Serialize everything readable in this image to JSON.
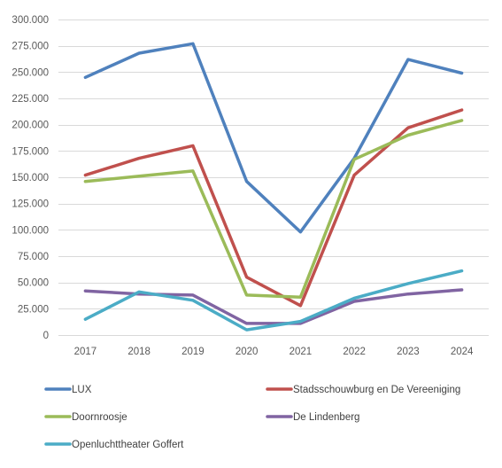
{
  "chart_data": {
    "type": "line",
    "title": "",
    "xlabel": "",
    "ylabel": "",
    "categories": [
      "2017",
      "2018",
      "2019",
      "2020",
      "2021",
      "2022",
      "2023",
      "2024"
    ],
    "ylim": [
      0,
      300000
    ],
    "yticks": [
      0,
      25000,
      50000,
      75000,
      100000,
      125000,
      150000,
      175000,
      200000,
      225000,
      250000,
      275000,
      300000
    ],
    "ytick_labels": [
      "0",
      "25.000",
      "50.000",
      "75.000",
      "100.000",
      "125.000",
      "150.000",
      "175.000",
      "200.000",
      "225.000",
      "250.000",
      "275.000",
      "300.000"
    ],
    "grid": true,
    "legend_position": "bottom",
    "series": [
      {
        "name": "LUX",
        "color": "#4F81BD",
        "values": [
          245000,
          268000,
          277000,
          146000,
          98000,
          168000,
          262000,
          249000
        ]
      },
      {
        "name": "Stadsschouwburg en De Vereeniging",
        "color": "#C0504D",
        "values": [
          152000,
          168000,
          180000,
          55000,
          28000,
          152000,
          197000,
          214000
        ]
      },
      {
        "name": "Doornroosje",
        "color": "#9BBB59",
        "values": [
          146000,
          151000,
          156000,
          38000,
          36000,
          167000,
          190000,
          204000
        ]
      },
      {
        "name": "De Lindenberg",
        "color": "#8064A2",
        "values": [
          42000,
          39000,
          38000,
          11000,
          11000,
          32000,
          39000,
          43000
        ]
      },
      {
        "name": "Openluchttheater Goffert",
        "color": "#4BACC6",
        "values": [
          15000,
          41000,
          33000,
          5000,
          13000,
          35000,
          49000,
          61000
        ]
      }
    ]
  }
}
